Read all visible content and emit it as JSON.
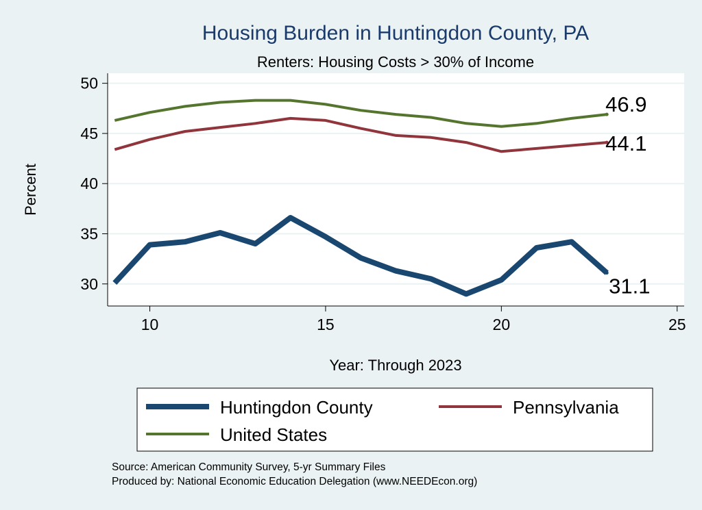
{
  "chart_data": {
    "type": "line",
    "title": "Housing Burden in Huntingdon County, PA",
    "subtitle": "Renters: Housing Costs > 30% of Income",
    "xlabel": "Year: Through 2023",
    "ylabel": "Percent",
    "xlim": [
      8.8,
      25.2
    ],
    "ylim": [
      27.8,
      51.0
    ],
    "x_ticks": [
      10,
      15,
      20,
      25
    ],
    "y_ticks": [
      30,
      35,
      40,
      45,
      50
    ],
    "x": [
      9,
      10,
      11,
      12,
      13,
      14,
      15,
      16,
      17,
      18,
      19,
      20,
      21,
      22,
      23
    ],
    "series": [
      {
        "name": "Huntingdon County",
        "color": "#1a476f",
        "values": [
          30.1,
          33.9,
          34.2,
          35.1,
          34.0,
          36.6,
          34.7,
          32.6,
          31.3,
          30.5,
          29.0,
          30.4,
          33.6,
          34.2,
          31.1
        ],
        "end_label": "31.1"
      },
      {
        "name": "Pennsylvania",
        "color": "#90353b",
        "values": [
          43.4,
          44.4,
          45.2,
          45.6,
          46.0,
          46.5,
          46.3,
          45.5,
          44.8,
          44.6,
          44.1,
          43.2,
          43.5,
          43.8,
          44.1
        ],
        "end_label": "44.1"
      },
      {
        "name": "United States",
        "color": "#55752f",
        "values": [
          46.3,
          47.1,
          47.7,
          48.1,
          48.3,
          48.3,
          47.9,
          47.3,
          46.9,
          46.6,
          46.0,
          45.7,
          46.0,
          46.5,
          46.9
        ],
        "end_label": "46.9"
      }
    ],
    "legend_position": "bottom",
    "source_lines": [
      "Source: American Community Survey, 5-yr Summary Files",
      "Produced by: National Economic Education Delegation (www.NEEDEcon.org)"
    ]
  }
}
